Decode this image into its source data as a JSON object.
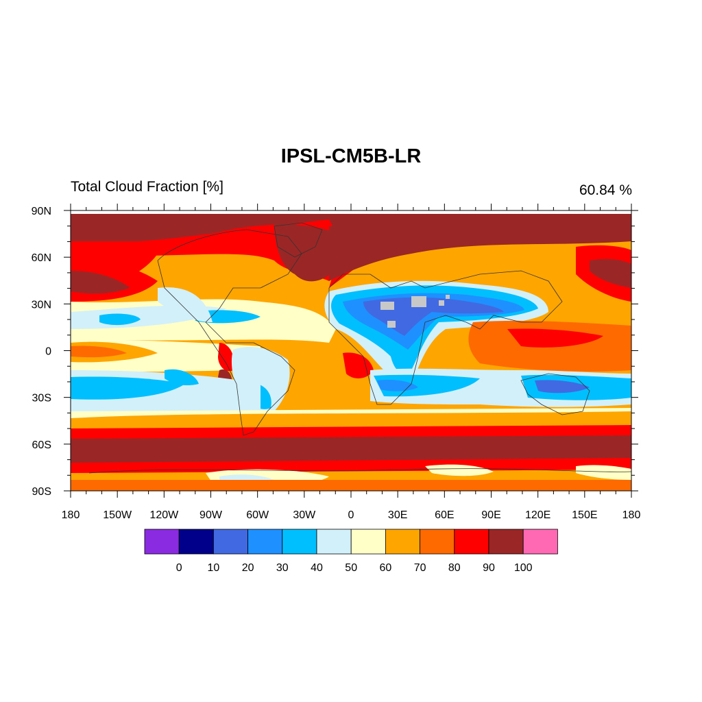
{
  "title": "IPSL-CM5B-LR",
  "subtitle_left": "Total Cloud Fraction [%]",
  "subtitle_right": "60.84 %",
  "axes": {
    "lon_labels": [
      "180",
      "150W",
      "120W",
      "90W",
      "60W",
      "30W",
      "0",
      "30E",
      "60E",
      "90E",
      "120E",
      "150E",
      "180"
    ],
    "lat_labels": [
      "90N",
      "60N",
      "30N",
      "0",
      "30S",
      "60S",
      "90S"
    ],
    "lon_range": [
      -180,
      180
    ],
    "lat_range": [
      -90,
      90
    ]
  },
  "colorbar": {
    "colors": [
      "#8a2be2",
      "#00008b",
      "#4169e1",
      "#1e90ff",
      "#00bfff",
      "#d2f0fa",
      "#ffffc8",
      "#ffa500",
      "#ff6a00",
      "#ff0000",
      "#9b2626",
      "#ff69b4"
    ],
    "labels": [
      "0",
      "10",
      "20",
      "30",
      "40",
      "50",
      "60",
      "70",
      "80",
      "90",
      "100"
    ]
  },
  "field_bands": {
    "description_levels": [
      0,
      10,
      20,
      30,
      40,
      50,
      60,
      70,
      80,
      90,
      100
    ],
    "missing_color": "#c8c8c8"
  }
}
